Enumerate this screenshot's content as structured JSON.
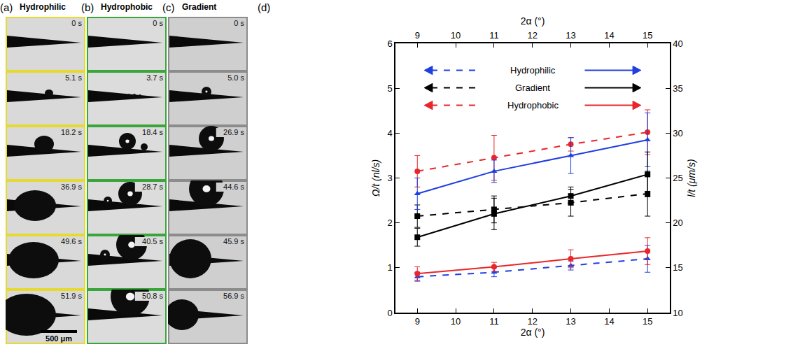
{
  "panels": [
    {
      "letter": "(a)",
      "title": "Hydrophilic",
      "times": [
        "0 s",
        "5.1 s",
        "18.2 s",
        "36.9 s",
        "49.6 s",
        "51.9 s"
      ]
    },
    {
      "letter": "(b)",
      "title": "Hydrophobic",
      "times": [
        "0 s",
        "3.7 s",
        "18.4 s",
        "28.7 s",
        "40.5 s",
        "50.8 s"
      ]
    },
    {
      "letter": "(c)",
      "title": "Gradient",
      "times": [
        "0 s",
        "5.0 s",
        "26.9 s",
        "44.6 s",
        "45.9 s",
        "56.9 s"
      ]
    }
  ],
  "scale_bar": "500 μm",
  "chart_data": {
    "letter": "(d)",
    "type": "line",
    "xlabel": "2α (°)",
    "x2label": "2α (°)",
    "ylabel": "Ω/t (nl/s)",
    "y2label": "l/t (μm/s)",
    "x": [
      9,
      11,
      13,
      15
    ],
    "xlim": [
      8.43,
      15.58
    ],
    "xticks": [
      9,
      10,
      11,
      12,
      13,
      14,
      15
    ],
    "ylim": [
      0,
      6
    ],
    "yticks": [
      0,
      1,
      2,
      3,
      4,
      5,
      6
    ],
    "y2lim": [
      10,
      40
    ],
    "y2ticks": [
      10,
      15,
      20,
      25,
      30,
      35,
      40
    ],
    "grid": false,
    "legend": "upper center",
    "series": [
      {
        "name": "Hydrophilic",
        "color": "#1f3fe0",
        "marker": "triangle-up",
        "line_style": "dash",
        "axis": "y",
        "values": [
          0.8,
          0.9,
          1.05,
          1.2
        ],
        "errors": [
          0.1,
          0.1,
          0.1,
          0.3
        ]
      },
      {
        "name": "Hydrophilic",
        "color": "#1f3fe0",
        "marker": "triangle-up",
        "line_style": "solid",
        "axis": "y2",
        "values": [
          23.25,
          25.75,
          27.5,
          29.25
        ],
        "errors": [
          1.75,
          1.25,
          2,
          3
        ]
      },
      {
        "name": "Gradient",
        "color": "#000000",
        "marker": "square",
        "line_style": "dash",
        "axis": "y",
        "values": [
          2.15,
          2.3,
          2.45,
          2.65
        ],
        "errors": [
          0.25,
          0.3,
          0.3,
          0.5
        ]
      },
      {
        "name": "Gradient",
        "color": "#000000",
        "marker": "square",
        "line_style": "solid",
        "axis": "y2",
        "values": [
          18.4,
          21,
          23,
          25.4
        ],
        "errors": [
          1,
          1.75,
          1,
          2.5
        ]
      },
      {
        "name": "Hydrophobic",
        "color": "#e8262b",
        "marker": "circle",
        "line_style": "dash",
        "axis": "y",
        "values": [
          3.15,
          3.45,
          3.75,
          4.02
        ],
        "errors": [
          0.35,
          0.5,
          0.15,
          0.5
        ]
      },
      {
        "name": "Hydrophobic",
        "color": "#e8262b",
        "marker": "circle",
        "line_style": "solid",
        "axis": "y2",
        "values": [
          14.35,
          15.1,
          16,
          16.85
        ],
        "errors": [
          0.75,
          0.5,
          1,
          1.5
        ]
      }
    ]
  }
}
